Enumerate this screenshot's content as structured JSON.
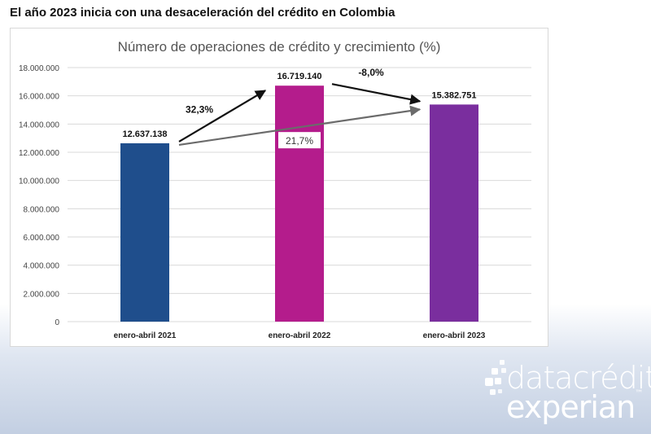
{
  "page": {
    "title": "El año 2023 inicia con una desaceleración del crédito en Colombia"
  },
  "chart_data": {
    "type": "bar",
    "title": "Número de operaciones de crédito y crecimiento (%)",
    "categories": [
      "enero-abril 2021",
      "enero-abril 2022",
      "enero-abril 2023"
    ],
    "values": [
      12637138,
      16719140,
      15382751
    ],
    "value_labels": [
      "12.637.138",
      "16.719.140",
      "15.382.751"
    ],
    "bar_colors": [
      "#1f4e8c",
      "#b41c8c",
      "#7a2e9e"
    ],
    "ylim": [
      0,
      18000000
    ],
    "yticks": [
      0,
      2000000,
      4000000,
      6000000,
      8000000,
      10000000,
      12000000,
      14000000,
      16000000,
      18000000
    ],
    "ytick_labels": [
      "0",
      "2.000.000",
      "4.000.000",
      "6.000.000",
      "8.000.000",
      "10.000.000",
      "12.000.000",
      "14.000.000",
      "16.000.000",
      "18.000.000"
    ],
    "grid": true,
    "annotations": [
      {
        "label": "32,3%",
        "from": "enero-abril 2021",
        "to": "enero-abril 2022",
        "color": "#111111"
      },
      {
        "label": "-8,0%",
        "from": "enero-abril 2022",
        "to": "enero-abril 2023",
        "color": "#111111"
      },
      {
        "label": "21,7%",
        "from": "enero-abril 2021",
        "to": "enero-abril 2023",
        "color": "#6b6b6b"
      }
    ]
  },
  "brand": {
    "line1": "datacrédito",
    "line2": "experian",
    "trademark": "™"
  }
}
